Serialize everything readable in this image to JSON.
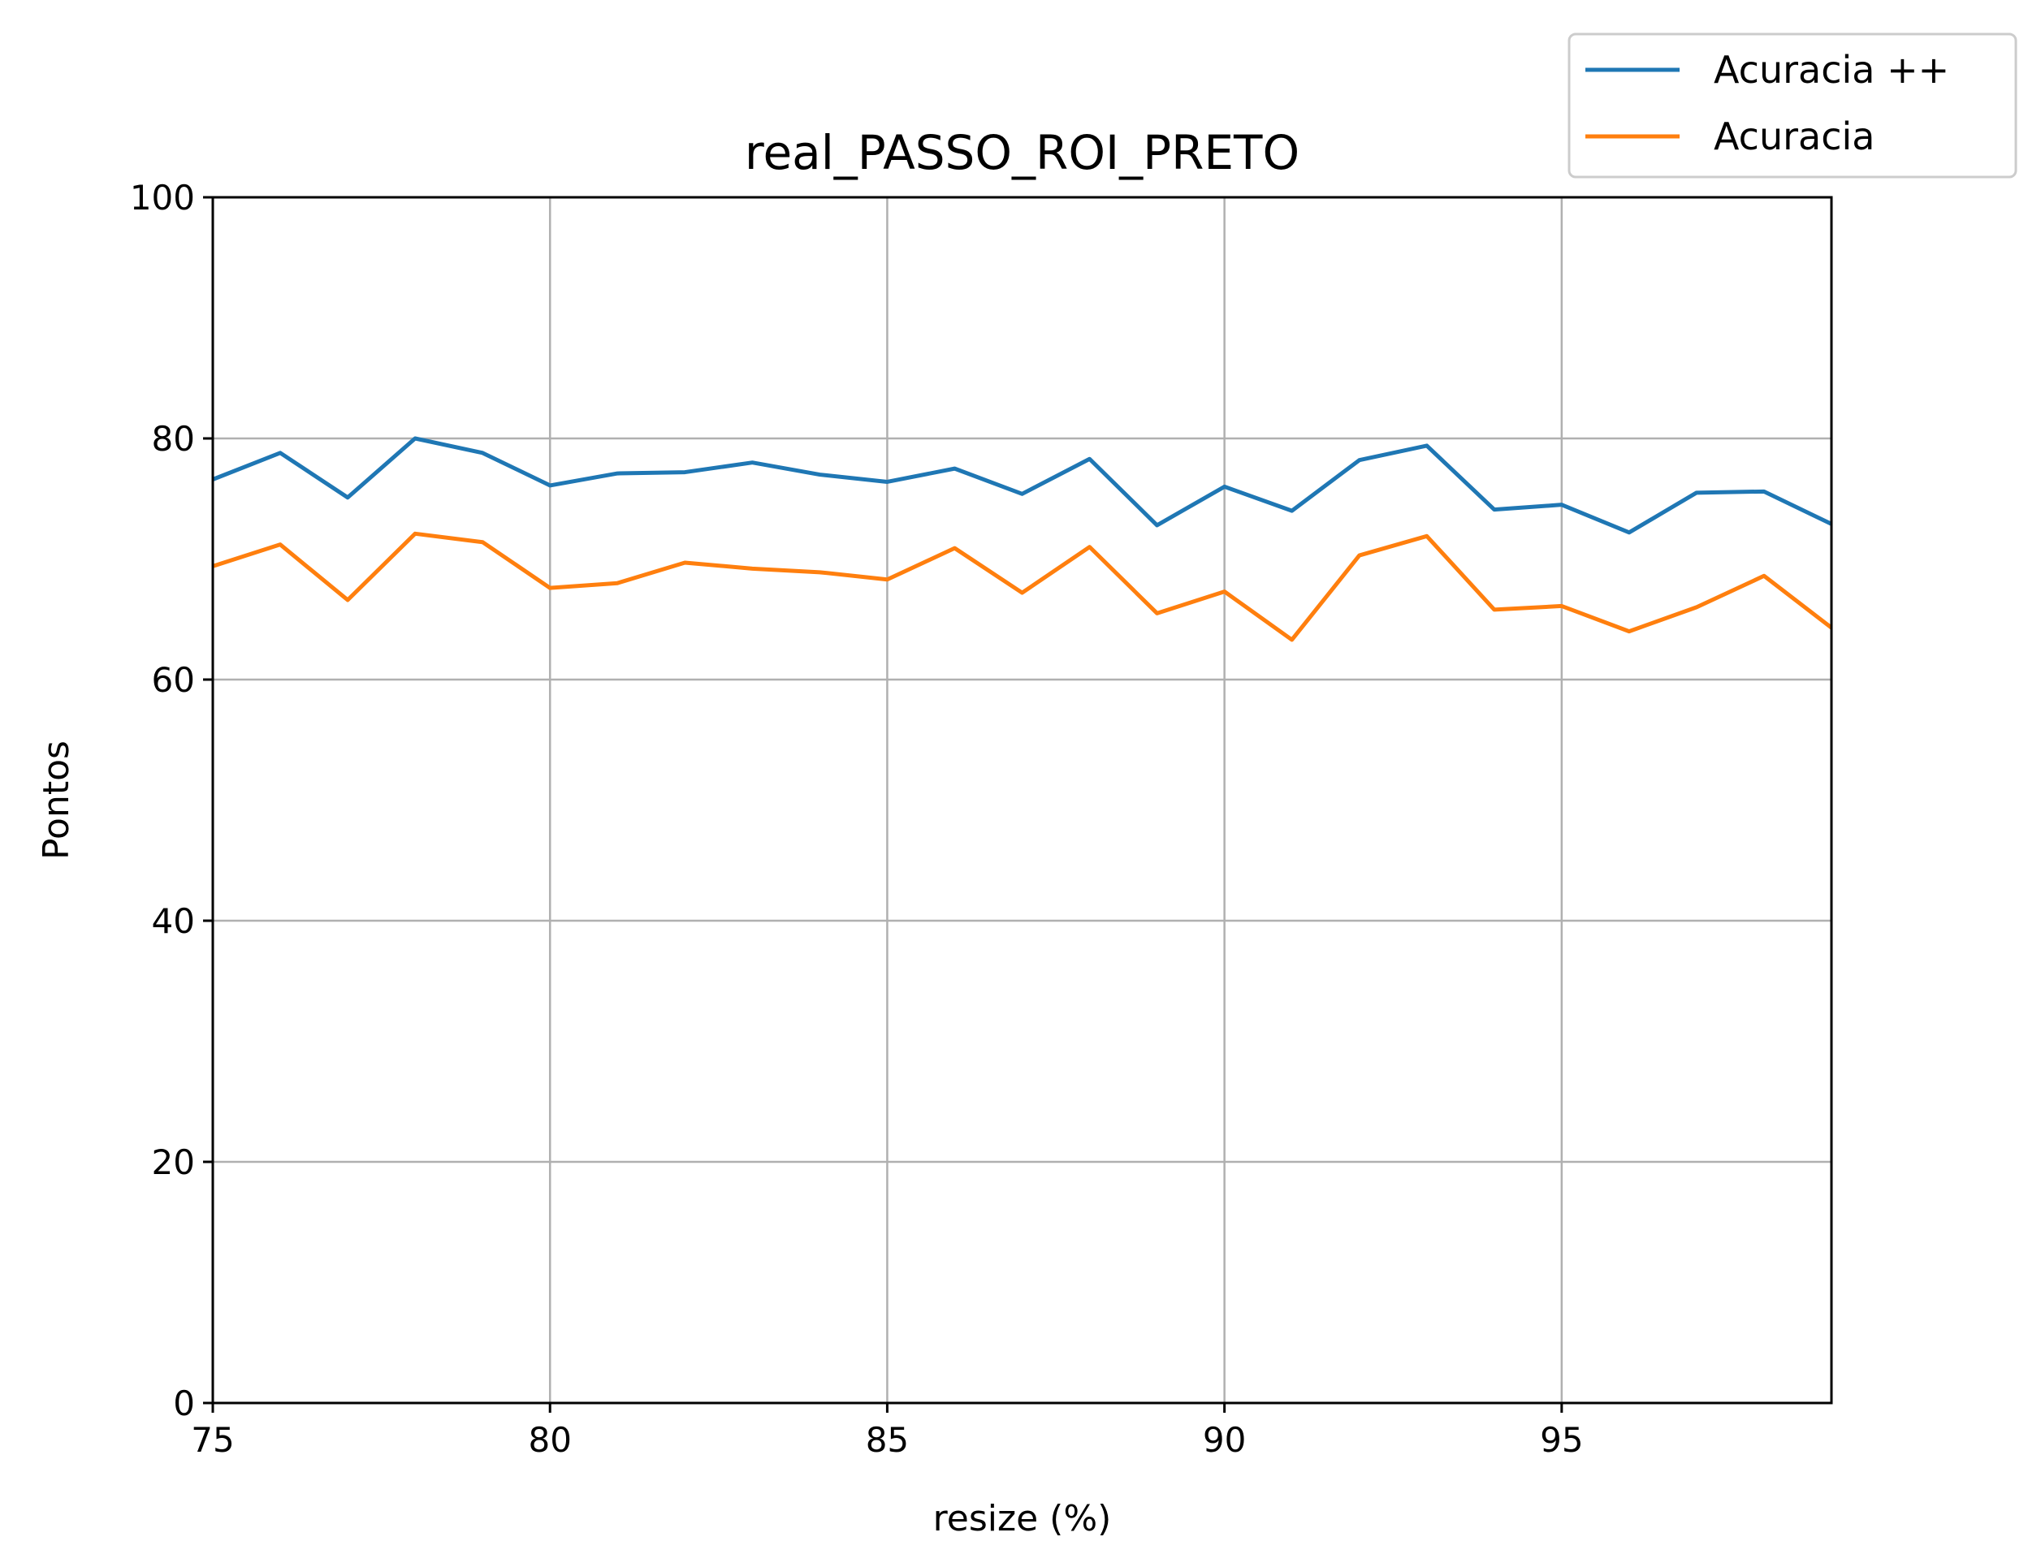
{
  "chart_data": {
    "type": "line",
    "title": "real_PASSO_ROI_PRETO",
    "xlabel": "resize (%)",
    "ylabel": "Pontos",
    "xlim": [
      75,
      99
    ],
    "ylim": [
      0,
      100
    ],
    "xticks": [
      75,
      80,
      85,
      90,
      95
    ],
    "yticks": [
      0,
      20,
      40,
      60,
      80,
      100
    ],
    "grid": true,
    "legend_position": "top-right, outside plot",
    "x": [
      75,
      76,
      77,
      78,
      79,
      80,
      81,
      82,
      83,
      84,
      85,
      86,
      87,
      88,
      89,
      90,
      91,
      92,
      93,
      94,
      95,
      96,
      97,
      98,
      99
    ],
    "series": [
      {
        "name": "Acuracia ++",
        "color": "#1f77b4",
        "values": [
          76.6,
          78.8,
          75.1,
          80.0,
          78.8,
          76.1,
          77.1,
          77.2,
          78.0,
          77.0,
          76.4,
          77.5,
          75.4,
          78.3,
          72.8,
          76.0,
          74.0,
          78.2,
          79.4,
          74.1,
          74.5,
          72.2,
          75.5,
          75.6,
          72.9
        ]
      },
      {
        "name": "Acuracia",
        "color": "#ff7f0e",
        "values": [
          69.4,
          71.2,
          66.6,
          72.1,
          71.4,
          67.6,
          68.0,
          69.7,
          69.2,
          68.9,
          68.3,
          70.9,
          67.2,
          71.0,
          65.5,
          67.3,
          63.3,
          70.3,
          71.9,
          65.8,
          66.1,
          64.0,
          66.0,
          68.6,
          64.3
        ]
      }
    ]
  }
}
